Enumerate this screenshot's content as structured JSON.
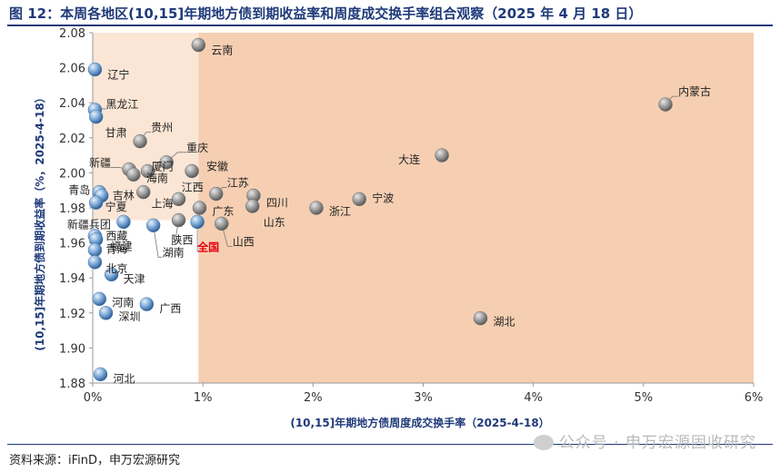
{
  "title": "图 12：本周各地区(10,15]年期地方债到期收益率和周度成交换手率组合观察（2025 年 4 月 18 日）",
  "source": "资料来源：iFinD，申万宏源研究",
  "watermark": "公众号 · 申万宏源固收研究",
  "colors": {
    "title": "#1f3a7a",
    "axis_label": "#1f3a7a",
    "quadrant_dark": "#f6cfb2",
    "quadrant_light": "#fbe6d6",
    "highlight_label": "#e60012",
    "bubble_gray": "#8e8e8e",
    "bubble_blue": "#6f9fd0"
  },
  "chart_data": {
    "type": "scatter",
    "xlabel": "(10,15]年期地方债周度成交换手率（2025-4-18）",
    "ylabel": "(10,15]年期地方债到期收益率（%，2025-4-18）",
    "xlim": [
      0,
      6
    ],
    "ylim": [
      1.88,
      2.08
    ],
    "xticks": [
      0,
      1,
      2,
      3,
      4,
      5,
      6
    ],
    "xtick_labels": [
      "0%",
      "1%",
      "2%",
      "3%",
      "4%",
      "5%",
      "6%"
    ],
    "yticks": [
      1.88,
      1.9,
      1.92,
      1.94,
      1.96,
      1.98,
      2.0,
      2.02,
      2.04,
      2.06,
      2.08
    ],
    "ytick_labels": [
      "1.88",
      "1.90",
      "1.92",
      "1.94",
      "1.96",
      "1.98",
      "2.00",
      "2.02",
      "2.04",
      "2.06",
      "2.08"
    ],
    "quadrant_divider": {
      "x": 0.96,
      "y": 1.973
    },
    "points": [
      {
        "name": "云南",
        "x": 0.96,
        "y": 2.073,
        "color": "gray"
      },
      {
        "name": "辽宁",
        "x": 0.02,
        "y": 2.059,
        "color": "blue"
      },
      {
        "name": "内蒙古",
        "x": 5.2,
        "y": 2.039,
        "color": "gray"
      },
      {
        "name": "黑龙江",
        "x": 0.02,
        "y": 2.036,
        "color": "blue"
      },
      {
        "name": "甘肃",
        "x": 0.03,
        "y": 2.032,
        "color": "blue"
      },
      {
        "name": "贵州",
        "x": 0.43,
        "y": 2.018,
        "color": "gray"
      },
      {
        "name": "大连",
        "x": 3.17,
        "y": 2.01,
        "color": "gray"
      },
      {
        "name": "重庆",
        "x": 0.67,
        "y": 2.006,
        "color": "gray"
      },
      {
        "name": "新疆",
        "x": 0.33,
        "y": 2.002,
        "color": "gray"
      },
      {
        "name": "厦门",
        "x": 0.5,
        "y": 2.001,
        "color": "gray"
      },
      {
        "name": "安徽",
        "x": 0.9,
        "y": 2.001,
        "color": "gray"
      },
      {
        "name": "海南",
        "x": 0.37,
        "y": 1.999,
        "color": "gray"
      },
      {
        "name": "江西",
        "x": 0.46,
        "y": 1.989,
        "color": "gray"
      },
      {
        "name": "青岛",
        "x": 0.06,
        "y": 1.989,
        "color": "blue"
      },
      {
        "name": "吉林",
        "x": 0.08,
        "y": 1.987,
        "color": "blue"
      },
      {
        "name": "江苏",
        "x": 1.12,
        "y": 1.988,
        "color": "gray"
      },
      {
        "name": "宁波",
        "x": 2.42,
        "y": 1.985,
        "color": "gray"
      },
      {
        "name": "上海",
        "x": 0.78,
        "y": 1.985,
        "color": "gray"
      },
      {
        "name": "四川",
        "x": 1.46,
        "y": 1.987,
        "color": "gray"
      },
      {
        "name": "宁夏",
        "x": 0.03,
        "y": 1.983,
        "color": "blue"
      },
      {
        "name": "广东",
        "x": 0.97,
        "y": 1.98,
        "color": "gray"
      },
      {
        "name": "浙江",
        "x": 2.03,
        "y": 1.98,
        "color": "gray"
      },
      {
        "name": "山东",
        "x": 1.45,
        "y": 1.981,
        "color": "gray"
      },
      {
        "name": "新疆兵团",
        "x": 0.28,
        "y": 1.972,
        "color": "blue"
      },
      {
        "name": "全国",
        "x": 0.95,
        "y": 1.972,
        "color": "blue",
        "highlight": true
      },
      {
        "name": "山西",
        "x": 1.17,
        "y": 1.971,
        "color": "gray"
      },
      {
        "name": "陕西",
        "x": 0.78,
        "y": 1.973,
        "color": "gray"
      },
      {
        "name": "湖南",
        "x": 0.55,
        "y": 1.97,
        "color": "blue"
      },
      {
        "name": "西藏",
        "x": 0.02,
        "y": 1.964,
        "color": "blue"
      },
      {
        "name": "福建",
        "x": 0.03,
        "y": 1.962,
        "color": "blue"
      },
      {
        "name": "青海",
        "x": 0.02,
        "y": 1.956,
        "color": "blue"
      },
      {
        "name": "北京",
        "x": 0.02,
        "y": 1.949,
        "color": "blue"
      },
      {
        "name": "天津",
        "x": 0.17,
        "y": 1.942,
        "color": "blue"
      },
      {
        "name": "河南",
        "x": 0.06,
        "y": 1.928,
        "color": "blue"
      },
      {
        "name": "广西",
        "x": 0.49,
        "y": 1.925,
        "color": "blue"
      },
      {
        "name": "深圳",
        "x": 0.12,
        "y": 1.92,
        "color": "blue"
      },
      {
        "name": "湖北",
        "x": 3.52,
        "y": 1.917,
        "color": "gray"
      },
      {
        "name": "河北",
        "x": 0.07,
        "y": 1.885,
        "color": "blue"
      }
    ]
  }
}
